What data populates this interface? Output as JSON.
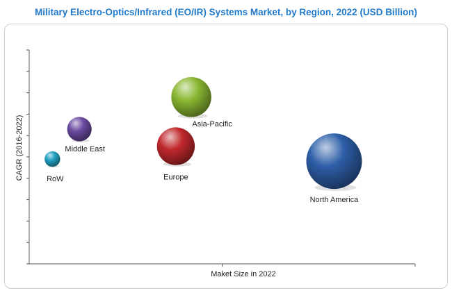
{
  "chart_data": {
    "type": "bubble",
    "title": "Military Electro-Optics/Infrared (EO/IR) Systems Market, by Region, 2022 (USD Billion)",
    "xlabel": "Maket Size in 2022",
    "ylabel": "CAGR (2016-2022)",
    "xlim": [
      0,
      10
    ],
    "ylim": [
      0,
      10
    ],
    "x_ticks": 2,
    "y_ticks": 11,
    "grid": false,
    "legend": "none",
    "series": [
      {
        "name": "Asia-Pacific",
        "x": 4.2,
        "y": 7.8,
        "size": 0.9,
        "color": "#8ab832"
      },
      {
        "name": "Middle East",
        "x": 1.3,
        "y": 6.3,
        "size": 0.55,
        "color": "#6a4aa0"
      },
      {
        "name": "Europe",
        "x": 3.8,
        "y": 5.5,
        "size": 0.85,
        "color": "#c0282c"
      },
      {
        "name": "RoW",
        "x": 0.6,
        "y": 4.9,
        "size": 0.35,
        "color": "#1f9fc0"
      },
      {
        "name": "North America",
        "x": 7.9,
        "y": 4.8,
        "size": 1.25,
        "color": "#2e5fa8"
      }
    ]
  }
}
